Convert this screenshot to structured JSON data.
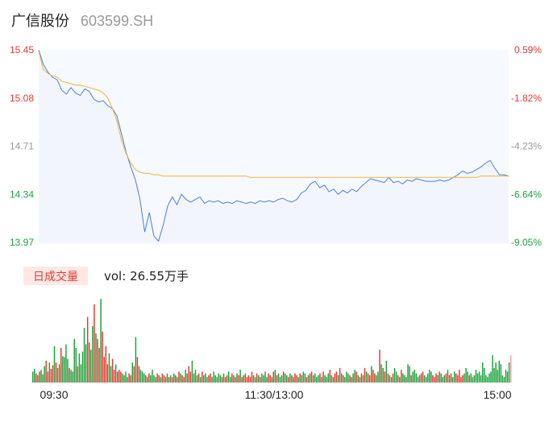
{
  "header": {
    "name": "广信股份",
    "code": "603599.SH"
  },
  "volume_panel": {
    "badge": "日成交量",
    "vol_label": "vol:",
    "vol_value": "26.55万手"
  },
  "colors": {
    "price_line": "#4a7fde",
    "avg_line": "#f0b43c",
    "up": "#e63a2e",
    "down": "#1fa33d",
    "neutral": "#9a9a9a",
    "area_fill": "#f2f6fc"
  },
  "chart_data": [
    {
      "type": "line",
      "title": "",
      "x_ticks": [
        "09:30",
        "11:30/13:00",
        "15:00"
      ],
      "y_range": [
        13.97,
        15.45
      ],
      "y_ticks_left": [
        "15.45",
        "15.08",
        "14.71",
        "14.34",
        "13.97"
      ],
      "y_ticks_right": [
        "0.59%",
        "-1.82%",
        "-4.23%",
        "-6.64%",
        "-9.05%"
      ],
      "grid": false,
      "series": [
        {
          "role": "price",
          "values": [
            15.45,
            15.34,
            15.28,
            15.24,
            15.22,
            15.14,
            15.11,
            15.16,
            15.12,
            15.1,
            15.15,
            15.13,
            15.07,
            15.05,
            15.06,
            15.02,
            15.0,
            14.94,
            14.8,
            14.66,
            14.55,
            14.45,
            14.3,
            14.05,
            14.2,
            14.02,
            13.98,
            14.1,
            14.25,
            14.32,
            14.26,
            14.34,
            14.3,
            14.28,
            14.3,
            14.32,
            14.27,
            14.29,
            14.28,
            14.29,
            14.27,
            14.28,
            14.27,
            14.29,
            14.28,
            14.27,
            14.28,
            14.27,
            14.29,
            14.28,
            14.29,
            14.28,
            14.3,
            14.31,
            14.29,
            14.28,
            14.3,
            14.35,
            14.37,
            14.42,
            14.44,
            14.39,
            14.41,
            14.36,
            14.38,
            14.34,
            14.37,
            14.35,
            14.38,
            14.36,
            14.4,
            14.43,
            14.46,
            14.45,
            14.44,
            14.43,
            14.47,
            14.43,
            14.44,
            14.42,
            14.45,
            14.44,
            14.46,
            14.45,
            14.44,
            14.44,
            14.44,
            14.45,
            14.44,
            14.45,
            14.47,
            14.49,
            14.52,
            14.5,
            14.51,
            14.53,
            14.55,
            14.58,
            14.6,
            14.54,
            14.49,
            14.49,
            14.48
          ]
        },
        {
          "role": "average",
          "values": [
            15.44,
            15.3,
            15.27,
            15.25,
            15.24,
            15.21,
            15.2,
            15.19,
            15.18,
            15.18,
            15.17,
            15.16,
            15.15,
            15.14,
            15.12,
            15.08,
            15.0,
            14.9,
            14.75,
            14.65,
            14.58,
            14.53,
            14.51,
            14.5,
            14.5,
            14.49,
            14.49,
            14.48,
            14.48,
            14.48,
            14.48,
            14.48,
            14.48,
            14.48,
            14.48,
            14.48,
            14.48,
            14.48,
            14.48,
            14.48,
            14.48,
            14.48,
            14.48,
            14.48,
            14.48,
            14.48,
            14.47,
            14.47,
            14.47,
            14.47,
            14.47,
            14.47,
            14.47,
            14.47,
            14.47,
            14.47,
            14.47,
            14.47,
            14.47,
            14.47,
            14.47,
            14.47,
            14.47,
            14.47,
            14.47,
            14.47,
            14.47,
            14.47,
            14.47,
            14.47,
            14.47,
            14.47,
            14.47,
            14.47,
            14.47,
            14.47,
            14.47,
            14.47,
            14.47,
            14.47,
            14.47,
            14.47,
            14.47,
            14.47,
            14.47,
            14.47,
            14.47,
            14.47,
            14.47,
            14.47,
            14.47,
            14.47,
            14.47,
            14.47,
            14.47,
            14.47,
            14.48,
            14.48,
            14.48,
            14.48,
            14.48,
            14.48,
            14.48
          ]
        }
      ]
    },
    {
      "type": "bar",
      "title": "",
      "bar_directions": [
        "down",
        "down",
        "up",
        "down",
        "up",
        "down",
        "down",
        "down",
        "up",
        "up",
        "down",
        "up",
        "up",
        "down",
        "up",
        "down",
        "up",
        "up",
        "down",
        "down",
        "down",
        "down",
        "up",
        "down",
        "down",
        "down",
        "down",
        "up",
        "down",
        "down",
        "down",
        "down",
        "down",
        "up",
        "up",
        "down",
        "down",
        "up",
        "down",
        "up",
        "up",
        "down",
        "up",
        "up",
        "up",
        "up",
        "down",
        "down",
        "up",
        "up",
        "down",
        "up",
        "up",
        "up",
        "down",
        "down",
        "down",
        "down",
        "up",
        "up",
        "down",
        "up",
        "down",
        "up",
        "up",
        "down",
        "down",
        "down",
        "up",
        "down",
        "up",
        "down",
        "down",
        "down",
        "down",
        "up",
        "up",
        "down",
        "up",
        "up",
        "down",
        "down",
        "up",
        "down",
        "up",
        "down",
        "up",
        "down",
        "up",
        "down",
        "up",
        "up",
        "down",
        "down",
        "up",
        "up",
        "down",
        "down",
        "down",
        "down",
        "up",
        "down",
        "up",
        "down",
        "down",
        "down",
        "up",
        "up",
        "down",
        "down",
        "down",
        "down",
        "down",
        "down",
        "up",
        "down",
        "up",
        "up",
        "down",
        "down",
        "up",
        "down",
        "up",
        "down",
        "up",
        "down",
        "up",
        "up",
        "down",
        "up",
        "up",
        "up",
        "up",
        "down",
        "down",
        "up",
        "down",
        "up",
        "down",
        "down",
        "down",
        "down",
        "up",
        "up",
        "down",
        "up",
        "down",
        "up",
        "down",
        "down",
        "down",
        "up",
        "down",
        "down",
        "up",
        "down",
        "up",
        "down",
        "up",
        "up",
        "down",
        "up",
        "down",
        "down",
        "down",
        "up",
        "down",
        "up",
        "up",
        "down",
        "down",
        "down",
        "down",
        "up",
        "down",
        "up",
        "down",
        "down",
        "down",
        "up",
        "down",
        "down",
        "up",
        "up",
        "down",
        "up",
        "down",
        "up",
        "down",
        "down",
        "down",
        "up",
        "up",
        "down",
        "down",
        "up",
        "down",
        "up",
        "up",
        "down",
        "up",
        "down",
        "up",
        "up",
        "down",
        "up",
        "up",
        "down",
        "down",
        "up",
        "down",
        "down",
        "up",
        "down",
        "up",
        "down",
        "down",
        "up",
        "down",
        "down",
        "up",
        "down",
        "up",
        "down",
        "down",
        "down",
        "down",
        "down",
        "up",
        "down",
        "down",
        "down",
        "down",
        "down",
        "up",
        "up",
        "down",
        "down",
        "down",
        "down",
        "down",
        "up",
        "up",
        "up",
        "down",
        "up",
        "down",
        "down",
        "down",
        "up",
        "down",
        "up",
        "up",
        "down",
        "down",
        "up",
        "up",
        "up",
        "up",
        "up",
        "down",
        "down",
        "down",
        "up"
      ],
      "values": [
        12,
        15,
        10,
        8,
        12,
        14,
        9,
        18,
        24,
        12,
        22,
        15,
        19,
        40,
        22,
        16,
        20,
        38,
        29,
        28,
        42,
        26,
        16,
        14,
        12,
        48,
        38,
        18,
        32,
        20,
        34,
        60,
        42,
        72,
        44,
        36,
        62,
        86,
        54,
        48,
        38,
        92,
        56,
        28,
        40,
        20,
        32,
        18,
        26,
        14,
        20,
        12,
        14,
        12,
        10,
        8,
        12,
        6,
        10,
        8,
        22,
        18,
        50,
        28,
        18,
        14,
        12,
        10,
        8,
        6,
        10,
        8,
        14,
        8,
        6,
        10,
        8,
        6,
        10,
        8,
        6,
        10,
        6,
        8,
        6,
        10,
        8,
        6,
        12,
        10,
        8,
        6,
        14,
        10,
        18,
        12,
        24,
        10,
        14,
        8,
        10,
        6,
        12,
        8,
        10,
        6,
        8,
        10,
        6,
        12,
        8,
        6,
        10,
        8,
        6,
        10,
        6,
        8,
        12,
        6,
        10,
        8,
        6,
        10,
        8,
        14,
        6,
        8,
        10,
        6,
        8,
        6,
        12,
        8,
        6,
        10,
        8,
        6,
        10,
        8,
        12,
        6,
        10,
        8,
        6,
        12,
        14,
        8,
        10,
        6,
        8,
        12,
        10,
        8,
        6,
        10,
        8,
        6,
        10,
        8,
        6,
        10,
        8,
        12,
        10,
        6,
        8,
        10,
        12,
        8,
        10,
        6,
        8,
        10,
        6,
        12,
        8,
        6,
        10,
        14,
        8,
        6,
        10,
        12,
        8,
        16,
        10,
        8,
        6,
        12,
        10,
        8,
        6,
        10,
        14,
        12,
        8,
        6,
        10,
        8,
        16,
        12,
        10,
        8,
        18,
        14,
        10,
        8,
        12,
        36,
        20,
        16,
        12,
        24,
        10,
        8,
        6,
        10,
        16,
        12,
        8,
        6,
        14,
        10,
        8,
        6,
        20,
        18,
        8,
        12,
        14,
        10,
        6,
        8,
        10,
        12,
        8,
        6,
        10,
        14,
        12,
        8,
        6,
        10,
        8,
        12,
        10,
        6,
        8,
        10,
        14,
        8,
        10,
        6,
        12,
        10,
        8,
        14,
        6,
        8,
        10,
        16,
        12,
        8,
        10,
        6,
        8,
        14,
        10,
        12,
        8,
        22,
        16,
        8,
        6,
        10,
        12,
        30,
        16,
        22,
        14,
        24,
        20,
        8,
        6,
        14,
        12,
        22,
        30
      ]
    }
  ]
}
